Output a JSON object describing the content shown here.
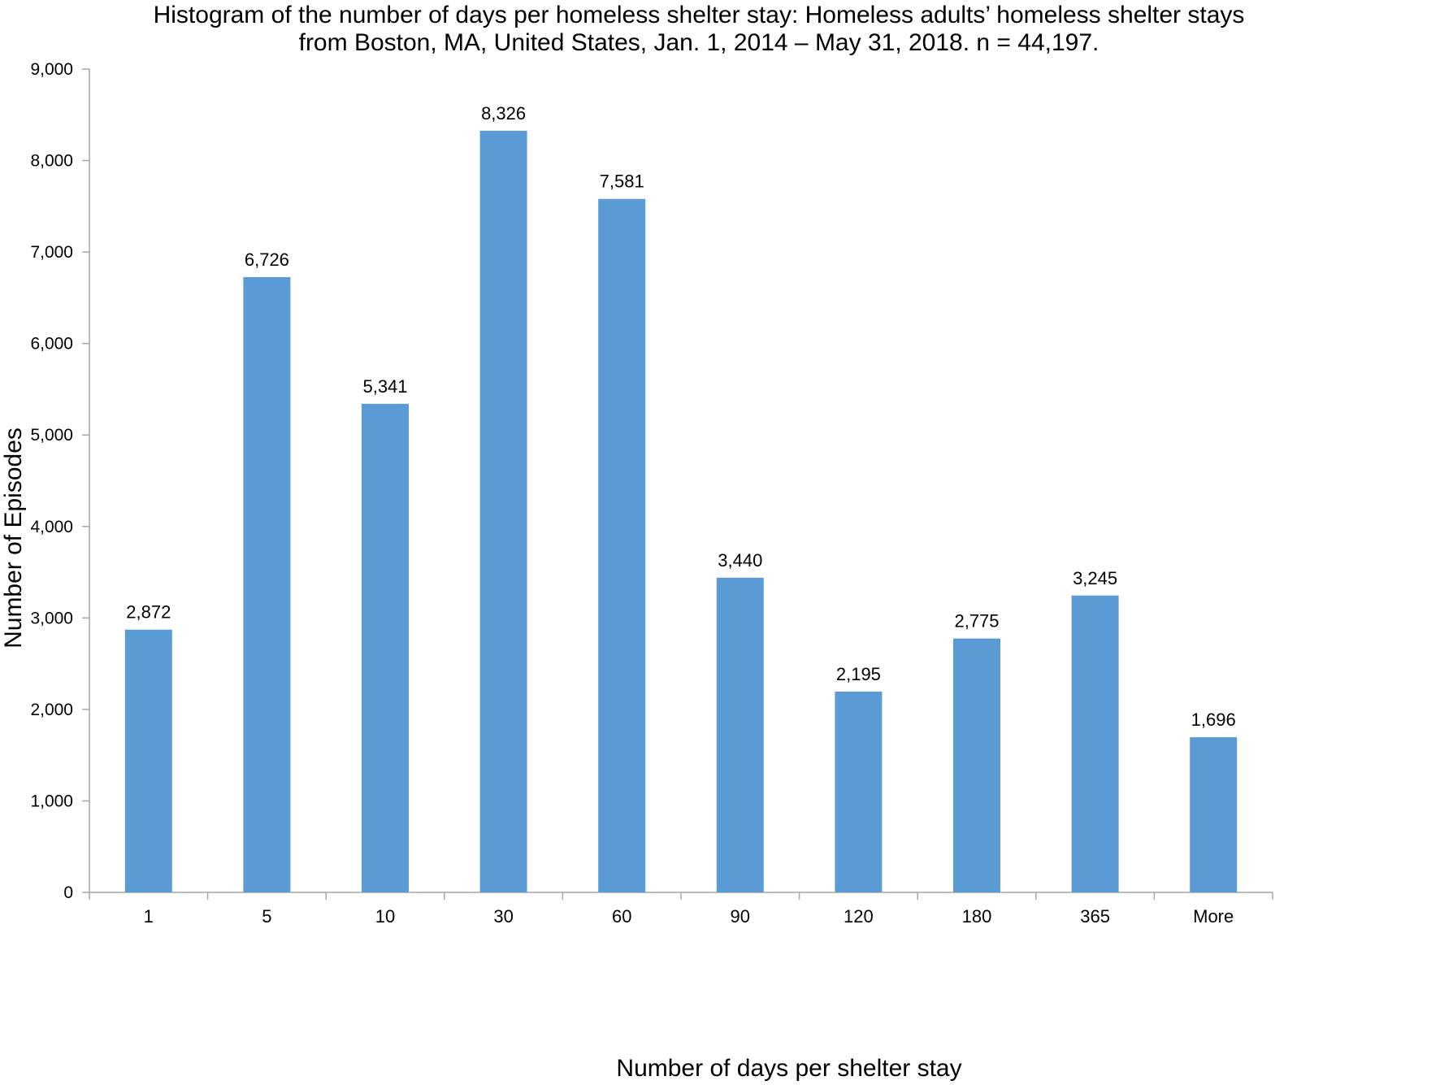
{
  "chart_data": {
    "type": "bar",
    "title": "Histogram of the number of days per homeless shelter stay: Homeless adults’ homeless shelter stays",
    "subtitle": "from Boston, MA, United States, Jan. 1, 2014 – May 31, 2018. n = 44,197.",
    "xlabel": "Number of days per shelter stay",
    "ylabel": "Number of Episodes",
    "categories": [
      "1",
      "5",
      "10",
      "30",
      "60",
      "90",
      "120",
      "180",
      "365",
      "More"
    ],
    "values": [
      2872,
      6726,
      5341,
      8326,
      7581,
      3440,
      2195,
      2775,
      3245,
      1696
    ],
    "value_labels": [
      "2,872",
      "6,726",
      "5,341",
      "8,326",
      "7,581",
      "3,440",
      "2,195",
      "2,775",
      "3,245",
      "1,696"
    ],
    "ylim": [
      0,
      9000
    ],
    "yticks": [
      0,
      1000,
      2000,
      3000,
      4000,
      5000,
      6000,
      7000,
      8000,
      9000
    ],
    "ytick_labels": [
      "0",
      "1,000",
      "2,000",
      "3,000",
      "4,000",
      "5,000",
      "6,000",
      "7,000",
      "8,000",
      "9,000"
    ],
    "grid": false,
    "legend": "none",
    "colors": {
      "bar": "#5b9bd5",
      "axis": "#a6a6a6",
      "text": "#000000"
    }
  }
}
